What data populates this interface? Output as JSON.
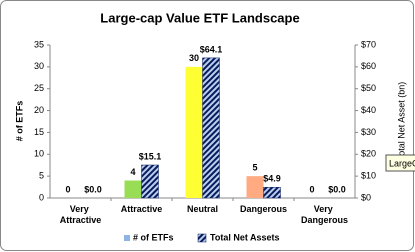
{
  "chart_data": {
    "type": "bar",
    "title": "Large-cap Value ETF Landscape",
    "categories": [
      "Very Attractive",
      "Attractive",
      "Neutral",
      "Dangerous",
      "Very Dangerous"
    ],
    "series": [
      {
        "name": "# of ETFs",
        "color": "#8db4e2",
        "colors": [
          "#2e8b2e",
          "#99dd55",
          "#ffff33",
          "#ffaa80",
          "#dd3333"
        ],
        "values": [
          0,
          4,
          30,
          5,
          0
        ]
      },
      {
        "name": "Total Net Assets",
        "color": "#0a1a5c",
        "axis": "y2",
        "values": [
          0,
          15.1,
          64.1,
          4.9,
          0
        ],
        "value_labels": [
          "$0.0",
          "$15.1",
          "$64.1",
          "$4.9",
          "$0.0"
        ]
      }
    ],
    "ylabel": "# of ETFs",
    "y2label": "Total Net Asset (bn)",
    "ylim": [
      0,
      35
    ],
    "yticks": [
      0,
      5,
      10,
      15,
      20,
      25,
      30,
      35
    ],
    "y2lim": [
      0,
      70
    ],
    "y2ticks": [
      {
        "value": 0,
        "label": "$0"
      },
      {
        "value": 10,
        "label": "$10"
      },
      {
        "value": 20,
        "label": "$20"
      },
      {
        "value": 30,
        "label": "$30"
      },
      {
        "value": 40,
        "label": "$40"
      },
      {
        "value": 50,
        "label": "$50"
      },
      {
        "value": 60,
        "label": "$60"
      },
      {
        "value": 70,
        "label": "$70"
      }
    ],
    "legend": "bottom",
    "tooltip": "LargeC"
  }
}
